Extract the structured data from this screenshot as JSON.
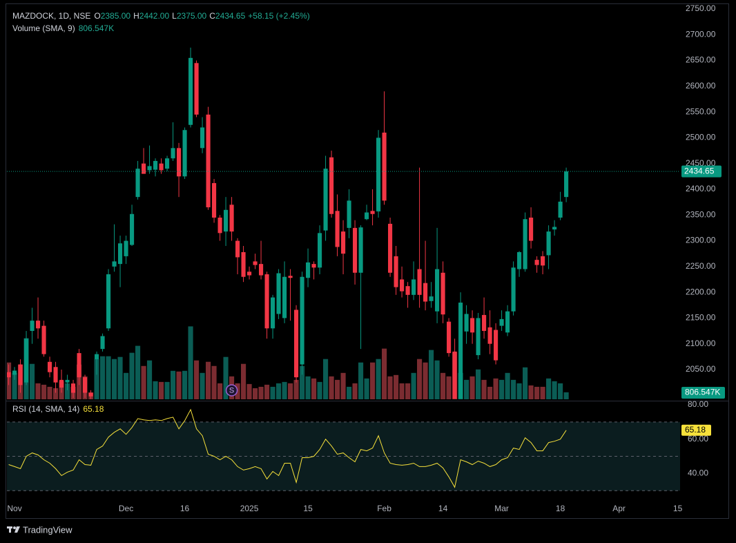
{
  "chart_data": {
    "type": "candlestick",
    "header": {
      "symbol": "MAZDOCK, 1D, NSE",
      "fields": [
        {
          "key": "O",
          "text": "2385.00"
        },
        {
          "key": "H",
          "text": "2442.00"
        },
        {
          "key": "L",
          "text": "2375.00"
        },
        {
          "key": "C",
          "text": "2434.65"
        }
      ],
      "change": "+58.15 (+2.45%)"
    },
    "colors": {
      "up": "#089981",
      "down": "#f23645",
      "volume_up": "#0b5d55",
      "volume_down": "#7b2c31",
      "text": "#b2b5be",
      "value": "#22ab94"
    },
    "xlim": [
      -0.3,
      114.4
    ],
    "xticks": [
      {
        "value": 1,
        "label": "Nov"
      },
      {
        "value": 20,
        "label": "Dec"
      },
      {
        "value": 30,
        "label": "16"
      },
      {
        "value": 41,
        "label": "2025"
      },
      {
        "value": 51,
        "label": "15"
      },
      {
        "value": 64,
        "label": "Feb"
      },
      {
        "value": 74,
        "label": "14"
      },
      {
        "value": 84,
        "label": "Mar"
      },
      {
        "value": 94,
        "label": "18"
      },
      {
        "value": 104,
        "label": "Apr"
      },
      {
        "value": 114,
        "label": "15"
      }
    ],
    "ylim": [
      1992.3,
      2754
    ],
    "yticks": [
      {
        "value": 2050,
        "label": "2050.00"
      },
      {
        "value": 2100,
        "label": "2100.00"
      },
      {
        "value": 2150,
        "label": "2150.00"
      },
      {
        "value": 2200,
        "label": "2200.00"
      },
      {
        "value": 2250,
        "label": "2250.00"
      },
      {
        "value": 2300,
        "label": "2300.00"
      },
      {
        "value": 2350,
        "label": "2350.00"
      },
      {
        "value": 2400,
        "label": "2400.00"
      },
      {
        "value": 2450,
        "label": "2450.00"
      },
      {
        "value": 2500,
        "label": "2500.00"
      },
      {
        "value": 2550,
        "label": "2550.00"
      },
      {
        "value": 2600,
        "label": "2600.00"
      },
      {
        "value": 2650,
        "label": "2650.00"
      },
      {
        "value": 2700,
        "label": "2700.00"
      },
      {
        "value": 2750,
        "label": "2750.00"
      }
    ],
    "candles": {
      "open": [
        2045,
        2040,
        2060,
        2025,
        2125,
        2145,
        2135,
        2065,
        2055,
        2030,
        2025,
        2023,
        2082,
        2035,
        2005,
        2070,
        2090,
        2130,
        2250,
        2255,
        2270,
        2292,
        2385,
        2450,
        2437,
        2438,
        2450,
        2440,
        2460,
        2480,
        2425,
        2525,
        2645,
        2480,
        2545,
        2412,
        2345,
        2318,
        2370,
        2300,
        2278,
        2240,
        2260,
        2255,
        2235,
        2130,
        2158,
        2150,
        2232,
        2166,
        2060,
        2228,
        2255,
        2248,
        2320,
        2462,
        2358,
        2318,
        2325,
        2325,
        2238,
        2342,
        2358,
        2357,
        2510,
        2333,
        2270,
        2225,
        2212,
        2195,
        2245,
        2218,
        2183,
        2163,
        2238,
        2143,
        2085,
        1993,
        2124,
        2150,
        2078,
        2156,
        2132,
        2127,
        2135,
        2122,
        2163,
        2245,
        2245,
        2345,
        2263,
        2270,
        2272,
        2322,
        2345,
        2385
      ],
      "high": [
        2060,
        2055,
        2070,
        2125,
        2170,
        2190,
        2145,
        2075,
        2065,
        2050,
        2040,
        2030,
        2090,
        2040,
        2010,
        2085,
        2120,
        2245,
        2332,
        2310,
        2310,
        2370,
        2455,
        2480,
        2485,
        2460,
        2460,
        2465,
        2530,
        2490,
        2520,
        2675,
        2650,
        2540,
        2560,
        2420,
        2350,
        2385,
        2385,
        2305,
        2290,
        2250,
        2275,
        2300,
        2240,
        2195,
        2245,
        2260,
        2245,
        2175,
        2240,
        2285,
        2260,
        2330,
        2465,
        2475,
        2390,
        2340,
        2400,
        2340,
        2330,
        2370,
        2400,
        2515,
        2590,
        2345,
        2290,
        2250,
        2220,
        2260,
        2442,
        2300,
        2220,
        2325,
        2260,
        2150,
        2110,
        2200,
        2175,
        2165,
        2160,
        2190,
        2165,
        2140,
        2165,
        2175,
        2260,
        2280,
        2355,
        2365,
        2270,
        2280,
        2330,
        2340,
        2395,
        2442
      ],
      "low": [
        2020,
        2030,
        2005,
        2020,
        2100,
        2110,
        2075,
        2035,
        2005,
        2005,
        2010,
        1995,
        2020,
        1995,
        1993,
        2040,
        2085,
        2125,
        2240,
        2210,
        2255,
        2290,
        2380,
        2430,
        2430,
        2425,
        2430,
        2435,
        2455,
        2385,
        2420,
        2520,
        2540,
        2470,
        2360,
        2335,
        2300,
        2290,
        2300,
        2235,
        2220,
        2225,
        2245,
        2225,
        2110,
        2110,
        2148,
        2140,
        2145,
        2025,
        2040,
        2210,
        2225,
        2235,
        2300,
        2345,
        2270,
        2235,
        2305,
        2215,
        2090,
        2340,
        2330,
        2345,
        2370,
        2230,
        2195,
        2190,
        2170,
        2185,
        2170,
        2165,
        2170,
        2140,
        2140,
        2075,
        1993,
        1993,
        2100,
        2100,
        2070,
        2110,
        2080,
        2060,
        2125,
        2115,
        2155,
        2230,
        2240,
        2285,
        2238,
        2235,
        2245,
        2310,
        2340,
        2375
      ],
      "close": [
        2035,
        2048,
        2020,
        2110,
        2145,
        2130,
        2080,
        2045,
        2025,
        2015,
        2030,
        2005,
        2035,
        2005,
        1998,
        2080,
        2115,
        2235,
        2260,
        2295,
        2300,
        2352,
        2440,
        2430,
        2445,
        2455,
        2437,
        2460,
        2480,
        2425,
        2515,
        2655,
        2545,
        2520,
        2365,
        2345,
        2315,
        2360,
        2318,
        2268,
        2230,
        2233,
        2253,
        2233,
        2130,
        2190,
        2237,
        2230,
        2228,
        2035,
        2230,
        2258,
        2248,
        2315,
        2440,
        2352,
        2288,
        2275,
        2378,
        2238,
        2326,
        2355,
        2352,
        2500,
        2378,
        2238,
        2210,
        2202,
        2195,
        2225,
        2195,
        2182,
        2192,
        2245,
        2157,
        2082,
        1993,
        2180,
        2158,
        2122,
        2150,
        2125,
        2100,
        2068,
        2148,
        2163,
        2248,
        2278,
        2342,
        2300,
        2253,
        2252,
        2318,
        2327,
        2376,
        2434.65
      ]
    },
    "events": [
      {
        "at": 38,
        "label": "S"
      }
    ],
    "volume": {
      "name": "Volume (SMA, 9)",
      "ylim": [
        0,
        45200000
      ],
      "values": [
        4240000,
        3040000,
        4000000,
        7040000,
        4080000,
        1840000,
        1680000,
        1440000,
        1280000,
        2080000,
        1840000,
        1440000,
        4000000,
        2640000,
        800000,
        4640000,
        4960000,
        4960000,
        4640000,
        4880000,
        3040000,
        5360000,
        6160000,
        3840000,
        4480000,
        2080000,
        2000000,
        2000000,
        3280000,
        3200000,
        3280000,
        8400000,
        4480000,
        3040000,
        4320000,
        3840000,
        1840000,
        4880000,
        2640000,
        1840000,
        4080000,
        1760000,
        1280000,
        1440000,
        1680000,
        1440000,
        1840000,
        2000000,
        1840000,
        2240000,
        3840000,
        2640000,
        2400000,
        2000000,
        4640000,
        2640000,
        2240000,
        3040000,
        1440000,
        1840000,
        4240000,
        2400000,
        4240000,
        4640000,
        5840000,
        2640000,
        2800000,
        1840000,
        1840000,
        3040000,
        4640000,
        4240000,
        5680000,
        4480000,
        3040000,
        2640000,
        5440000,
        3040000,
        2240000,
        2640000,
        3440000,
        2240000,
        1440000,
        2400000,
        2240000,
        3040000,
        2240000,
        1840000,
        3680000,
        1600000,
        1440000,
        1440000,
        2400000,
        2080000,
        1840000,
        806547
      ],
      "value_label": "806.547K"
    },
    "rsi": {
      "name": "RSI (14, SMA, 14)",
      "color": "#f7e13b",
      "ylim": [
        14.8,
        82
      ],
      "yticks": [
        {
          "value": 80,
          "label": "80.00"
        },
        {
          "value": 60,
          "label": "60.00"
        },
        {
          "value": 40,
          "label": "40.00"
        }
      ],
      "bands": [
        70,
        50,
        30
      ],
      "values": [
        45.2,
        44,
        42.8,
        50,
        52,
        50.8,
        48,
        46,
        42.8,
        38.8,
        40.8,
        42,
        48,
        45.2,
        44.8,
        54,
        56,
        61.2,
        64,
        66,
        62.8,
        66.8,
        72,
        71.2,
        70.8,
        71.2,
        70.8,
        72,
        72.8,
        66,
        70.8,
        77.2,
        66,
        62,
        51.2,
        50,
        48,
        50,
        48,
        44,
        42,
        42.8,
        44,
        42.8,
        36.8,
        41.2,
        38.8,
        46,
        46,
        34.8,
        49.2,
        49.2,
        50,
        54,
        60,
        56,
        51.2,
        52,
        49.2,
        46.8,
        54,
        53.2,
        54.8,
        62,
        52,
        46,
        45.2,
        44.8,
        45.2,
        46,
        44,
        44,
        44.8,
        46,
        43.2,
        38,
        32,
        48,
        46.8,
        45.2,
        47.2,
        46,
        44,
        45.2,
        48,
        49.2,
        54.8,
        54,
        60.8,
        58,
        53.2,
        53.2,
        58,
        58.8,
        60,
        65.18
      ]
    },
    "brand": "TradingView"
  }
}
